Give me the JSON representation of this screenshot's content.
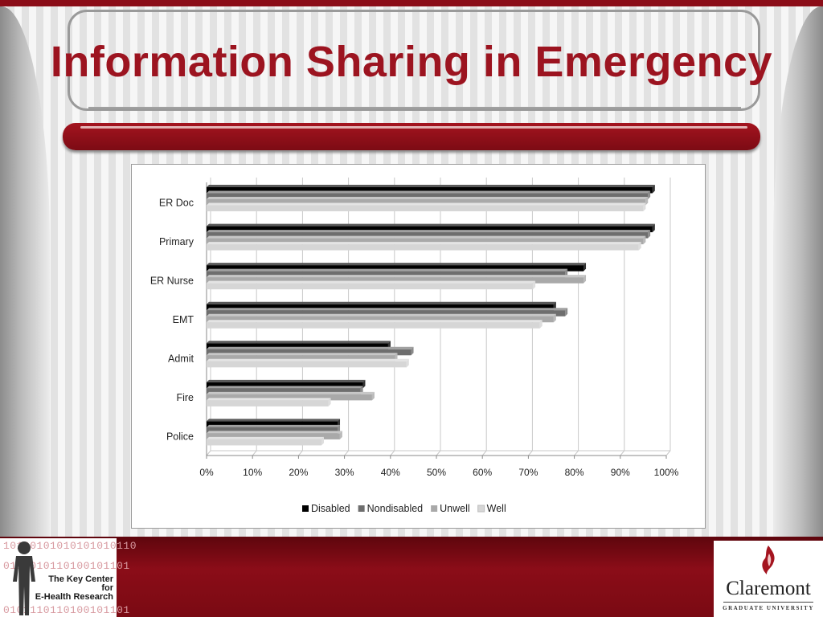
{
  "slide": {
    "title": "Information Sharing in Emergency"
  },
  "logos": {
    "key_center": {
      "line1": "The Key Center",
      "line2": "for",
      "line3": "E-Health Research",
      "binary_rows": [
        "10100101010101010110",
        "0111010110100101101",
        "0101110110100101101"
      ]
    },
    "claremont": {
      "name": "Claremont",
      "subtitle": "GRADUATE UNIVERSITY"
    }
  },
  "colors": {
    "accent_red": "#8b0d18",
    "title_red": "#9c1420"
  },
  "chart_data": {
    "type": "bar",
    "orientation": "horizontal",
    "style": "3d-clustered",
    "title": "",
    "xlabel": "",
    "ylabel": "",
    "categories": [
      "ER Doc",
      "Primary",
      "ER Nurse",
      "EMT",
      "Admit",
      "Fire",
      "Police"
    ],
    "series": [
      {
        "name": "Disabled",
        "color": "#000000",
        "values": [
          97,
          97,
          82,
          75.5,
          39.5,
          34,
          28.5
        ]
      },
      {
        "name": "Nondisabled",
        "color": "#6e6e6e",
        "values": [
          96,
          96,
          78,
          78,
          44.5,
          33.5,
          28.5
        ]
      },
      {
        "name": "Unwell",
        "color": "#a9a9a9",
        "values": [
          95.5,
          95,
          82,
          75.5,
          41,
          36,
          29
        ]
      },
      {
        "name": "Well",
        "color": "#d6d6d6",
        "values": [
          95,
          94,
          71,
          72.5,
          43.5,
          26.5,
          25
        ]
      }
    ],
    "x_ticks": [
      "0%",
      "10%",
      "20%",
      "30%",
      "40%",
      "50%",
      "60%",
      "70%",
      "80%",
      "90%",
      "100%"
    ],
    "xlim": [
      0,
      100
    ],
    "grid": true,
    "legend_position": "bottom"
  }
}
